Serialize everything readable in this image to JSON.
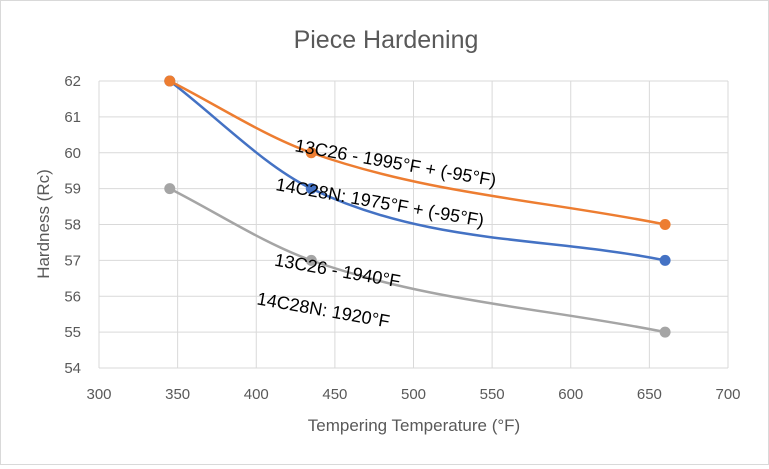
{
  "chart_data": {
    "type": "line",
    "title": "Piece Hardening",
    "xlabel": "Tempering Temperature (°F)",
    "ylabel": "Hardness (Rc)",
    "xlim": [
      300,
      700
    ],
    "ylim": [
      54,
      62
    ],
    "x_ticks": [
      300,
      350,
      400,
      450,
      500,
      550,
      600,
      650,
      700
    ],
    "y_ticks": [
      54,
      55,
      56,
      57,
      58,
      59,
      60,
      61,
      62
    ],
    "grid": true,
    "series": [
      {
        "name": "13C26 - 1995°F + (-95°F)",
        "color": "#ED7D31",
        "x": [
          345,
          435,
          660
        ],
        "values": [
          62,
          60,
          58
        ]
      },
      {
        "name": "14C28N: 1975°F + (-95°F)",
        "color": "#4472C4",
        "x": [
          345,
          435,
          660
        ],
        "values": [
          62,
          59,
          57
        ]
      },
      {
        "name": "13C26 - 1940°F",
        "color": "#A5A5A5",
        "x": [
          345,
          435,
          660
        ],
        "values": [
          59,
          57,
          55
        ]
      }
    ],
    "annotations": [
      {
        "text": "13C26 - 1995°F + (-95°F)",
        "x": 488,
        "y": 59.55,
        "angle": 10
      },
      {
        "text": "14C28N: 1975°F + (-95°F)",
        "x": 478,
        "y": 58.45,
        "angle": 10
      },
      {
        "text": "13C26 - 1940°F",
        "x": 451,
        "y": 56.55,
        "angle": 10
      },
      {
        "text": "14C28N: 1920°F",
        "x": 442,
        "y": 55.45,
        "angle": 10
      }
    ]
  },
  "colors": {
    "grid": "#d9d9d9",
    "axis_text": "#595959",
    "title_text": "#595959",
    "annotation_text": "#000000"
  }
}
